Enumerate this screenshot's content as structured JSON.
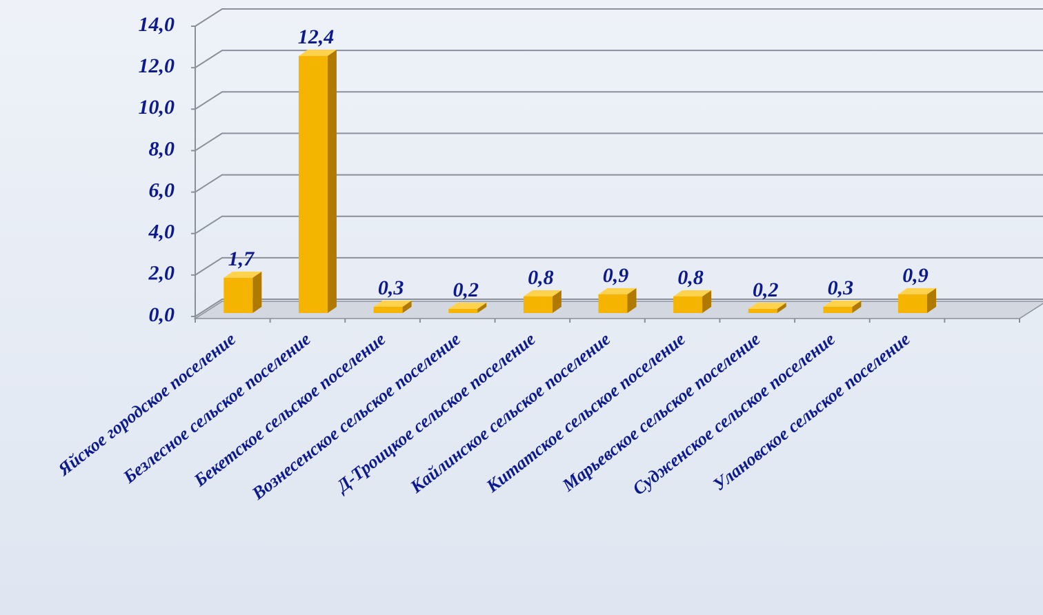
{
  "chart_data": {
    "type": "bar3d",
    "categories": [
      "Яйское городское поселение",
      "Безлесное сельское поселение",
      "Бекетское сельское поселение",
      "Вознесенское сельское поселение",
      "Д-Троицкое сельское поселение",
      "Кайлинское сельское поселение",
      "Китатское сельское поселение",
      "Марьевское сельское поселение",
      "Судженское сельское поселение",
      "Улановское сельское поселение"
    ],
    "values": [
      1.7,
      12.4,
      0.3,
      0.2,
      0.8,
      0.9,
      0.8,
      0.2,
      0.3,
      0.9
    ],
    "value_labels": [
      "1,7",
      "12,4",
      "0,3",
      "0,2",
      "0,8",
      "0,9",
      "0,8",
      "0,2",
      "0,3",
      "0,9"
    ],
    "color": "#f5b400",
    "ylim": [
      0,
      14
    ],
    "yticks": [
      {
        "value": 0,
        "label": "0,0"
      },
      {
        "value": 2,
        "label": "2,0"
      },
      {
        "value": 4,
        "label": "4,0"
      },
      {
        "value": 6,
        "label": "6,0"
      },
      {
        "value": 8,
        "label": "8,0"
      },
      {
        "value": 10,
        "label": "10,0"
      },
      {
        "value": 12,
        "label": "12,0"
      },
      {
        "value": 14,
        "label": "14,0"
      }
    ],
    "grid": true
  }
}
